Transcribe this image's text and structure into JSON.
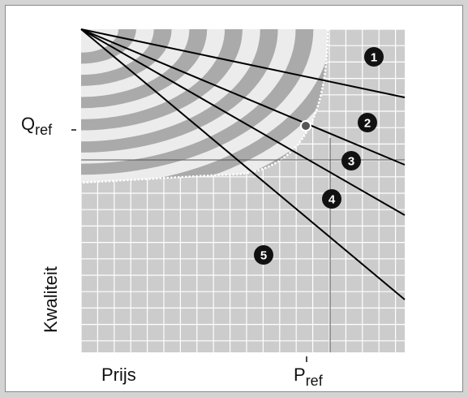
{
  "labels": {
    "q_ref_main": "Q",
    "q_ref_sub": "ref",
    "quality_axis": "Kwaliteit",
    "price_axis": "Prijs",
    "p_ref_main": "P",
    "p_ref_sub": "ref"
  },
  "zones": [
    {
      "id": "zone-1",
      "number": "1"
    },
    {
      "id": "zone-2",
      "number": "2"
    },
    {
      "id": "zone-3",
      "number": "3"
    },
    {
      "id": "zone-4",
      "number": "4"
    },
    {
      "id": "zone-5",
      "number": "5"
    }
  ],
  "colors": {
    "background": "#d4d4d4",
    "grid_area": "#cccccc",
    "band_dark": "#aaaaaa",
    "band_light": "#ececec",
    "grid_line": "#ffffff",
    "ray": "#000000",
    "badge": "#111111"
  }
}
